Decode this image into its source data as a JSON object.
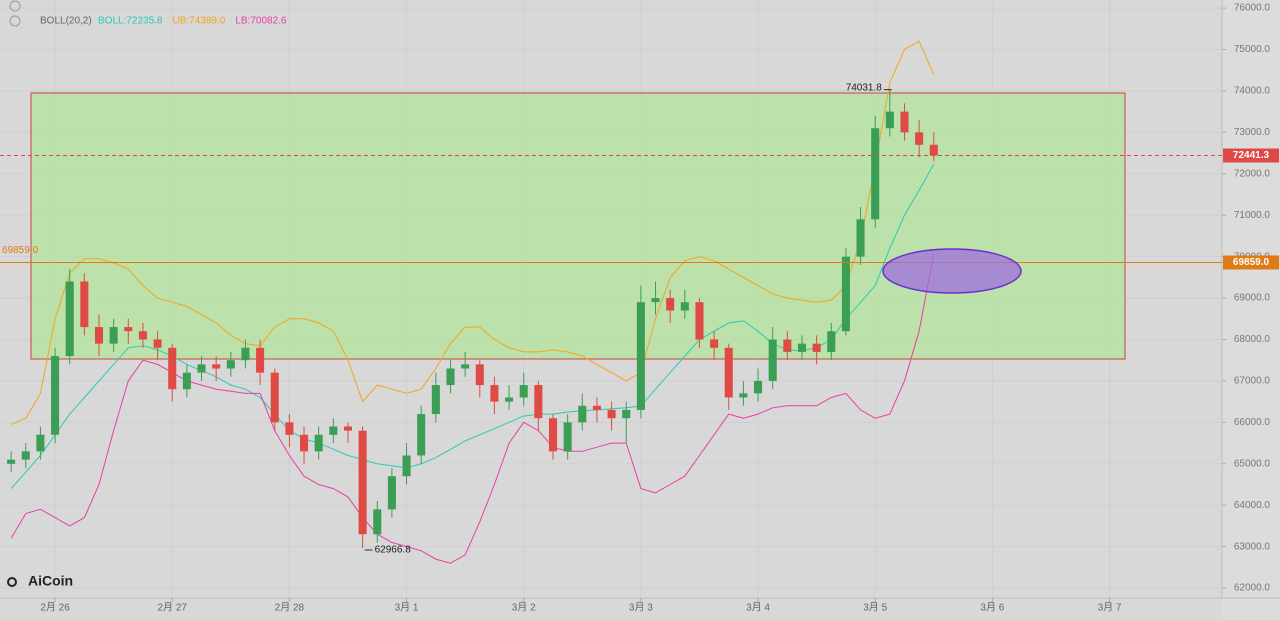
{
  "chart_data": {
    "type": "candlestick",
    "indicator": "BOLL(20,2)",
    "x": [
      -0.375,
      -0.25,
      -0.125,
      0,
      0.125,
      0.25,
      0.375,
      0.5,
      0.625,
      0.75,
      0.875,
      1,
      1.125,
      1.25,
      1.375,
      1.5,
      1.625,
      1.75,
      1.875,
      2,
      2.125,
      2.25,
      2.375,
      2.5,
      2.625,
      2.75,
      2.875,
      3,
      3.125,
      3.25,
      3.375,
      3.5,
      3.625,
      3.75,
      3.875,
      4,
      4.125,
      4.25,
      4.375,
      4.5,
      4.625,
      4.75,
      4.875,
      5,
      5.125,
      5.25,
      5.375,
      5.5,
      5.625,
      5.75,
      5.875,
      6,
      6.125,
      6.25,
      6.375,
      6.5,
      6.625,
      6.75,
      6.875,
      7,
      7.125,
      7.25,
      7.375,
      7.5
    ],
    "open": [
      65000,
      65100,
      65300,
      65700,
      67600,
      69400,
      68300,
      67900,
      68300,
      68200,
      68000,
      67800,
      66800,
      67200,
      67400,
      67300,
      67500,
      67800,
      67200,
      66000,
      65700,
      65300,
      65700,
      65900,
      65800,
      63300,
      63900,
      64700,
      65200,
      66200,
      66900,
      67300,
      67400,
      66900,
      66500,
      66600,
      66900,
      66100,
      65300,
      66000,
      66400,
      66300,
      66100,
      66300,
      68900,
      69000,
      68700,
      68900,
      68000,
      67800,
      66600,
      66700,
      67000,
      68000,
      67700,
      67900,
      67700,
      68200,
      70000,
      70900,
      73100,
      73500,
      73000,
      72700
    ],
    "high": [
      65300,
      65500,
      65900,
      67800,
      69700,
      69600,
      68600,
      68500,
      68500,
      68400,
      68200,
      67900,
      67400,
      67600,
      67600,
      67700,
      68000,
      68000,
      67300,
      66200,
      65900,
      65900,
      66100,
      66000,
      65900,
      64100,
      64900,
      65500,
      66400,
      67200,
      67500,
      67700,
      67500,
      67100,
      66900,
      67200,
      67000,
      66200,
      66200,
      66700,
      66600,
      66500,
      66500,
      69300,
      69400,
      69200,
      69200,
      69000,
      68200,
      67900,
      67000,
      67300,
      68300,
      68200,
      68100,
      68100,
      68400,
      70200,
      71200,
      73400,
      74031.8,
      73700,
      73300,
      73000
    ],
    "low": [
      64800,
      64900,
      65100,
      65500,
      67400,
      68100,
      67600,
      67700,
      67900,
      67800,
      67500,
      66500,
      66600,
      67000,
      67000,
      67100,
      67300,
      66900,
      65800,
      65400,
      65000,
      65100,
      65500,
      65500,
      62966.8,
      63100,
      63700,
      64500,
      65000,
      66000,
      66700,
      67100,
      66600,
      66200,
      66300,
      66400,
      65800,
      65100,
      65100,
      65800,
      66000,
      65800,
      65500,
      66100,
      68600,
      68400,
      68500,
      67800,
      67500,
      66300,
      66400,
      66500,
      66800,
      67500,
      67500,
      67400,
      67500,
      68100,
      69800,
      70700,
      72900,
      72800,
      72400,
      72300
    ],
    "close": [
      65100,
      65300,
      65700,
      67600,
      69400,
      68300,
      67900,
      68300,
      68200,
      68000,
      67800,
      66800,
      67200,
      67400,
      67300,
      67500,
      67800,
      67200,
      66000,
      65700,
      65300,
      65700,
      65900,
      65800,
      63300,
      63900,
      64700,
      65200,
      66200,
      66900,
      67300,
      67400,
      66900,
      66500,
      66600,
      66900,
      66100,
      65300,
      66000,
      66400,
      66300,
      66100,
      66300,
      68900,
      69000,
      68700,
      68900,
      68000,
      67800,
      66600,
      66700,
      67000,
      68000,
      67700,
      67900,
      67700,
      68200,
      70000,
      70900,
      73100,
      73500,
      73000,
      72700,
      72441.3
    ],
    "up_color": "#3a9e55",
    "down_color": "#df4b44",
    "series": [
      {
        "name": "BOLL",
        "label": "BOLL:72235.8",
        "color": "#2cc9b4",
        "values": [
          64400,
          64800,
          65200,
          65700,
          66200,
          66600,
          67000,
          67400,
          67800,
          67850,
          67750,
          67600,
          67400,
          67250,
          67100,
          66900,
          66800,
          66600,
          66200,
          65800,
          65600,
          65500,
          65350,
          65200,
          65100,
          65000,
          64950,
          64900,
          65000,
          65150,
          65350,
          65550,
          65700,
          65850,
          66000,
          66150,
          66200,
          66200,
          66250,
          66280,
          66300,
          66330,
          66350,
          66400,
          66800,
          67200,
          67600,
          68000,
          68200,
          68400,
          68450,
          68200,
          67900,
          67750,
          67730,
          67800,
          68000,
          68500,
          68900,
          69300,
          70200,
          71000,
          71600,
          72235.8
        ]
      },
      {
        "name": "UB",
        "label": "UB:74389.0",
        "color": "#f2a51c",
        "values": [
          65950,
          66100,
          66700,
          68500,
          69600,
          69950,
          69950,
          69850,
          69700,
          69300,
          69000,
          68900,
          68800,
          68600,
          68400,
          68100,
          67900,
          67850,
          68300,
          68500,
          68500,
          68400,
          68200,
          67500,
          66500,
          66900,
          66800,
          66700,
          66800,
          67300,
          67900,
          68300,
          68300,
          68000,
          67800,
          67700,
          67700,
          67750,
          67700,
          67600,
          67400,
          67200,
          67000,
          67200,
          68500,
          69500,
          69900,
          70000,
          69900,
          69700,
          69500,
          69300,
          69100,
          69000,
          68950,
          68900,
          68950,
          69300,
          70400,
          72200,
          74200,
          75000,
          75200,
          74389.0
        ]
      },
      {
        "name": "LB",
        "label": "LB:70082.6",
        "color": "#e83fa6",
        "values": [
          63200,
          63800,
          63900,
          63700,
          63500,
          63700,
          64500,
          65800,
          67000,
          67500,
          67400,
          67200,
          67000,
          66900,
          66800,
          66750,
          66700,
          66700,
          65800,
          65200,
          64700,
          64500,
          64400,
          64200,
          63700,
          63300,
          63100,
          63000,
          62900,
          62700,
          62600,
          62800,
          63600,
          64500,
          65500,
          66000,
          65800,
          65400,
          65300,
          65300,
          65400,
          65500,
          65500,
          64400,
          64300,
          64500,
          64700,
          65200,
          65700,
          66200,
          66100,
          66200,
          66350,
          66400,
          66400,
          66400,
          66600,
          66700,
          66300,
          66100,
          66200,
          67000,
          68200,
          70082.6
        ]
      }
    ],
    "price_lines": [
      {
        "value": 72441.3,
        "label": "72441.3",
        "color": "#e04848",
        "dashed": true
      },
      {
        "value": 69859.0,
        "label": "69859.0",
        "color": "#e07a14",
        "dashed": false
      }
    ],
    "high_marker": {
      "x": 7.125,
      "value": 74031.8
    },
    "low_marker": {
      "x": 2.625,
      "value": 62966.8
    },
    "xlim": [
      -0.47,
      9.96
    ],
    "ylim": [
      61760,
      76195
    ],
    "xticks": [
      {
        "value": 0,
        "label": "2月 26"
      },
      {
        "value": 1,
        "label": "2月 27"
      },
      {
        "value": 2,
        "label": "2月 28"
      },
      {
        "value": 3,
        "label": "3月 1"
      },
      {
        "value": 4,
        "label": "3月 2"
      },
      {
        "value": 5,
        "label": "3月 3"
      },
      {
        "value": 6,
        "label": "3月 4"
      },
      {
        "value": 7,
        "label": "3月 5"
      },
      {
        "value": 8,
        "label": "3月 6"
      },
      {
        "value": 9,
        "label": "3月 7"
      }
    ],
    "yticks": [
      {
        "value": 62000,
        "label": "62000.0"
      },
      {
        "value": 63000,
        "label": "63000.0"
      },
      {
        "value": 64000,
        "label": "64000.0"
      },
      {
        "value": 65000,
        "label": "65000.0"
      },
      {
        "value": 66000,
        "label": "66000.0"
      },
      {
        "value": 67000,
        "label": "67000.0"
      },
      {
        "value": 68000,
        "label": "68000.0"
      },
      {
        "value": 69000,
        "label": "69000.0"
      },
      {
        "value": 70000,
        "label": "70000.0"
      },
      {
        "value": 71000,
        "label": "71000.0"
      },
      {
        "value": 72000,
        "label": "72000.0"
      },
      {
        "value": 73000,
        "label": "73000.0"
      },
      {
        "value": 74000,
        "label": "74000.0"
      },
      {
        "value": 75000,
        "label": "75000.0"
      },
      {
        "value": 76000,
        "label": "76000.0"
      }
    ],
    "grid": true,
    "logo": "AiCoin"
  }
}
